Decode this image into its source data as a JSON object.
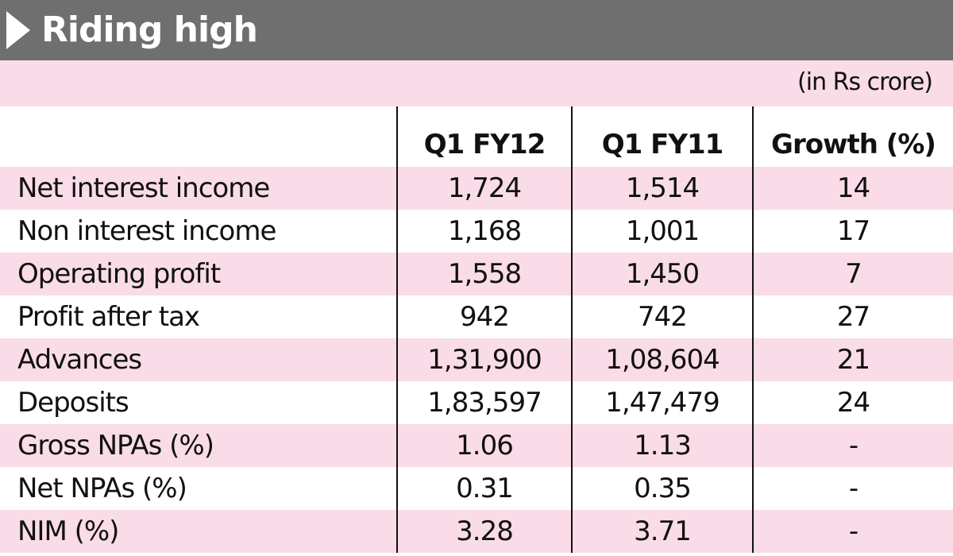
{
  "title": "Riding high",
  "units": "(in Rs crore)",
  "columns": [
    "",
    "Q1 FY12",
    "Q1 FY11",
    "Growth (%)"
  ],
  "rows": [
    {
      "label": "Net interest income",
      "q1fy12": "1,724",
      "q1fy11": "1,514",
      "growth": "14"
    },
    {
      "label": "Non interest income",
      "q1fy12": "1,168",
      "q1fy11": "1,001",
      "growth": "17"
    },
    {
      "label": "Operating profit",
      "q1fy12": "1,558",
      "q1fy11": "1,450",
      "growth": "7"
    },
    {
      "label": "Profit after tax",
      "q1fy12": "942",
      "q1fy11": "742",
      "growth": "27"
    },
    {
      "label": "Advances",
      "q1fy12": "1,31,900",
      "q1fy11": "1,08,604",
      "growth": "21"
    },
    {
      "label": "Deposits",
      "q1fy12": "1,83,597",
      "q1fy11": "1,47,479",
      "growth": "24"
    },
    {
      "label": "Gross NPAs (%)",
      "q1fy12": "1.06",
      "q1fy11": "1.13",
      "growth": "-"
    },
    {
      "label": "Net NPAs (%)",
      "q1fy12": "0.31",
      "q1fy11": "0.35",
      "growth": "-"
    },
    {
      "label": "NIM (%)",
      "q1fy12": "3.28",
      "q1fy11": "3.71",
      "growth": "-"
    }
  ],
  "colors": {
    "title_bar": "#6f6f6f",
    "stripe": "#f9dce8",
    "text": "#111111"
  }
}
